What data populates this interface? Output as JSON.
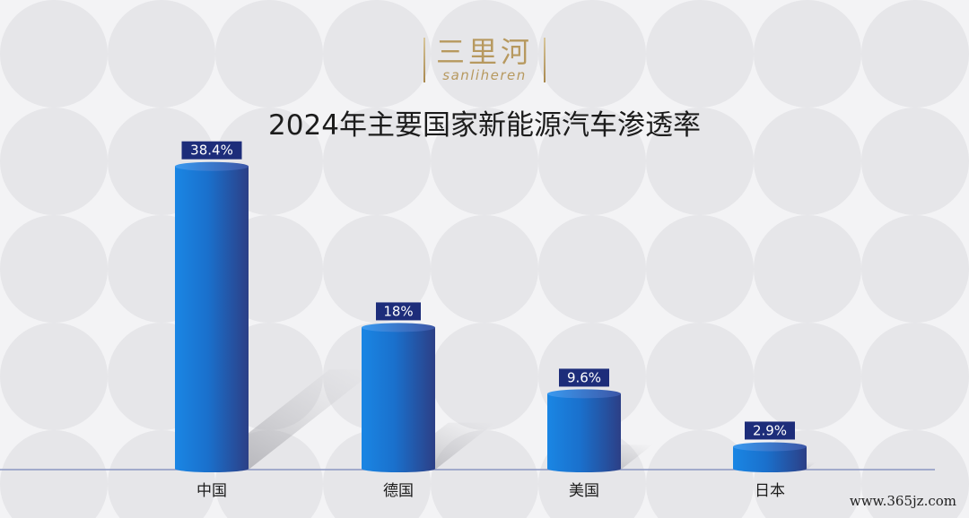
{
  "logo": {
    "cn": "三里河",
    "en": "sanliheren"
  },
  "watermark": "www.365jz.com",
  "colors": {
    "bar_light": "#1a86e4",
    "bar_dark": "#2c3f86",
    "label_bg": "#1d2d7a",
    "axis": "#8a96c2"
  },
  "chart_data": {
    "type": "bar",
    "title": "2024年主要国家新能源汽车渗透率",
    "categories": [
      "中国",
      "德国",
      "美国",
      "日本"
    ],
    "values": [
      38.4,
      18,
      9.6,
      2.9
    ],
    "value_labels": [
      "38.4%",
      "18%",
      "9.6%",
      "2.9%"
    ],
    "ylim": [
      0,
      42
    ],
    "xlabel": "",
    "ylabel": "",
    "grid": false,
    "legend": "none"
  }
}
